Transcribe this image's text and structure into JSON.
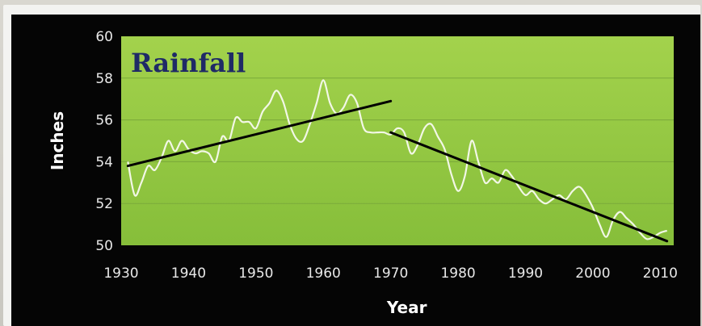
{
  "chart_data": {
    "type": "line",
    "title": "Rainfall",
    "xlabel": "Year",
    "ylabel": "Inches",
    "xlim": [
      1930,
      2012
    ],
    "ylim": [
      50,
      60
    ],
    "xticks": [
      1930,
      1940,
      1950,
      1960,
      1970,
      1980,
      1990,
      2000,
      2010
    ],
    "yticks": [
      50,
      52,
      54,
      56,
      58,
      60
    ],
    "grid": true,
    "legend": "none",
    "colors": {
      "plot_background": "#8dc63f",
      "plot_background_top": "#9fd04a",
      "series_line": "#f2f7e6",
      "trend_line": "#000000",
      "gridline": "#7aa93a",
      "title": "#1f2a66",
      "axis_text": "#e8e8e8"
    },
    "series": [
      {
        "x": [
          1931,
          1932,
          1933,
          1934,
          1935,
          1936,
          1937,
          1938,
          1939,
          1940,
          1941,
          1942,
          1943,
          1944,
          1945,
          1946,
          1947,
          1948,
          1949,
          1950,
          1951,
          1952,
          1953,
          1954,
          1955,
          1956,
          1957,
          1958,
          1959,
          1960,
          1961,
          1962,
          1963,
          1964,
          1965,
          1966,
          1967,
          1968,
          1969,
          1970,
          1971,
          1972,
          1973,
          1974,
          1975,
          1976,
          1977,
          1978,
          1979,
          1980,
          1981,
          1982,
          1983,
          1984,
          1985,
          1986,
          1987,
          1988,
          1989,
          1990,
          1991,
          1992,
          1993,
          1994,
          1995,
          1996,
          1997,
          1998,
          1999,
          2000,
          2001,
          2002,
          2003,
          2004,
          2005,
          2006,
          2007,
          2008,
          2009,
          2010,
          2011
        ],
        "values": [
          54.0,
          52.4,
          53.0,
          53.8,
          53.6,
          54.2,
          55.0,
          54.5,
          55.0,
          54.6,
          54.4,
          54.5,
          54.4,
          54.0,
          55.2,
          55.0,
          56.1,
          55.9,
          55.9,
          55.6,
          56.4,
          56.8,
          57.4,
          56.9,
          55.8,
          55.1,
          55.0,
          55.8,
          56.8,
          57.9,
          56.8,
          56.3,
          56.6,
          57.2,
          56.8,
          55.6,
          55.4,
          55.4,
          55.4,
          55.3,
          55.6,
          55.4,
          54.4,
          54.8,
          55.6,
          55.8,
          55.2,
          54.6,
          53.4,
          52.6,
          53.3,
          55.0,
          54.0,
          53.0,
          53.2,
          53.0,
          53.6,
          53.3,
          52.8,
          52.4,
          52.6,
          52.2,
          52.0,
          52.2,
          52.4,
          52.2,
          52.6,
          52.8,
          52.4,
          51.8,
          51.0,
          50.4,
          51.2,
          51.6,
          51.3,
          51.0,
          50.6,
          50.3,
          50.4,
          50.6,
          50.7
        ]
      }
    ],
    "trend_lines": [
      {
        "x": [
          1931,
          1970
        ],
        "values": [
          53.8,
          56.9
        ]
      },
      {
        "x": [
          1970,
          2011
        ],
        "values": [
          55.4,
          50.2
        ]
      }
    ]
  }
}
